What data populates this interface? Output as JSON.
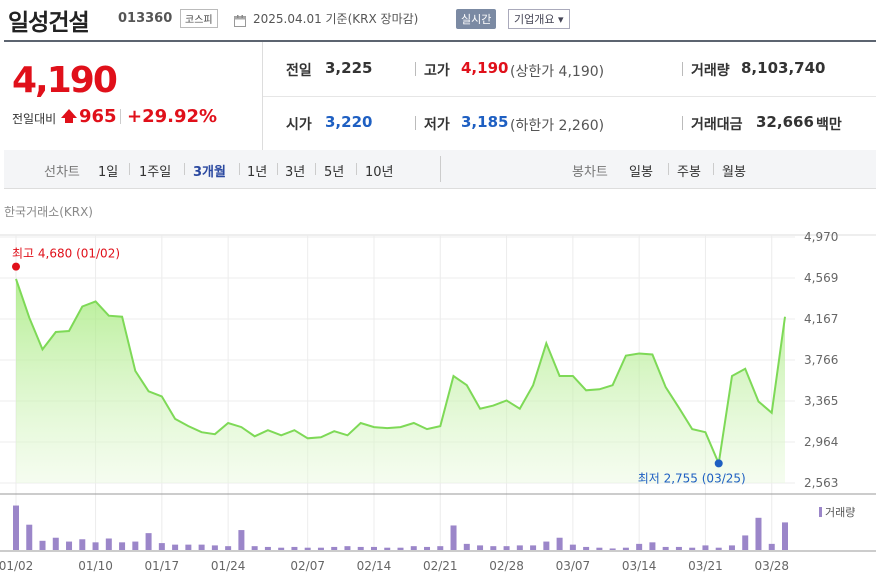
{
  "header": {
    "company_name": "일성건설",
    "code": "013360",
    "market": "코스피",
    "date_text": "2025.04.01  기준(KRX 장마감)",
    "live_button": "실시간",
    "info_button": "기업개요 ▾"
  },
  "quote": {
    "price": "4,190",
    "change_label": "전일대비",
    "change_value": "965",
    "change_pct": "+29.92%",
    "prev_close_label": "전일",
    "prev_close": "3,225",
    "high_label": "고가",
    "high": "4,190",
    "upper_limit": "(상한가 4,190)",
    "volume_label": "거래량",
    "volume": "8,103,740",
    "open_label": "시가",
    "open": "3,220",
    "low_label": "저가",
    "low": "3,185",
    "lower_limit": "(하한가 2,260)",
    "amount_label": "거래대금",
    "amount": "32,666",
    "amount_unit": "백만"
  },
  "period_bar": {
    "line_label": "선차트",
    "periods": [
      "1일",
      "1주일",
      "3개월",
      "1년",
      "3년",
      "5년",
      "10년"
    ],
    "active": "3개월",
    "candle_label": "봉차트",
    "candles": [
      "일봉",
      "주봉",
      "월봉"
    ]
  },
  "colors": {
    "up": "#e0101a",
    "down": "#1e5fc2",
    "line": "#7ed957",
    "volume": "#9b86c9"
  },
  "chart_data": {
    "type": "area",
    "exchange_label": "한국거래소(KRX)",
    "y_ticks": [
      "4,970",
      "4,569",
      "4,167",
      "3,766",
      "3,365",
      "2,964",
      "2,563"
    ],
    "ylim": [
      2563,
      4970
    ],
    "x_ticks": [
      "01/02",
      "01/10",
      "01/17",
      "01/24",
      "02/07",
      "02/14",
      "02/21",
      "02/28",
      "03/07",
      "03/14",
      "03/21",
      "03/28"
    ],
    "x_tick_index": [
      0,
      6,
      11,
      16,
      22,
      27,
      32,
      37,
      42,
      47,
      52,
      57
    ],
    "high_annotation": "최고 4,680 (01/02)",
    "low_annotation": "최저 2,755 (03/25)",
    "volume_label": "거래량",
    "series": [
      {
        "name": "종가",
        "values": [
          4560,
          4180,
          3870,
          4040,
          4050,
          4290,
          4340,
          4200,
          4190,
          3660,
          3460,
          3410,
          3190,
          3120,
          3060,
          3040,
          3150,
          3110,
          3020,
          3080,
          3030,
          3080,
          3000,
          3010,
          3070,
          3030,
          3150,
          3110,
          3100,
          3110,
          3150,
          3090,
          3120,
          3610,
          3520,
          3290,
          3320,
          3370,
          3290,
          3520,
          3930,
          3610,
          3610,
          3470,
          3480,
          3520,
          3810,
          3830,
          3820,
          3500,
          3300,
          3090,
          3060,
          2755,
          3610,
          3680,
          3360,
          3250,
          4190
        ]
      },
      {
        "name": "거래량",
        "values": [
          5.8,
          3.3,
          1.2,
          1.6,
          1.1,
          1.4,
          1.0,
          1.5,
          1.0,
          1.1,
          2.2,
          0.9,
          0.7,
          0.7,
          0.7,
          0.6,
          0.5,
          2.6,
          0.5,
          0.4,
          0.3,
          0.4,
          0.3,
          0.3,
          0.4,
          0.5,
          0.4,
          0.4,
          0.3,
          0.3,
          0.5,
          0.4,
          0.5,
          3.2,
          0.8,
          0.6,
          0.5,
          0.5,
          0.6,
          0.6,
          1.1,
          1.6,
          0.7,
          0.4,
          0.3,
          0.2,
          0.3,
          0.8,
          1.0,
          0.4,
          0.4,
          0.3,
          0.6,
          0.3,
          0.6,
          1.9,
          4.2,
          0.8,
          3.6
        ]
      }
    ]
  }
}
